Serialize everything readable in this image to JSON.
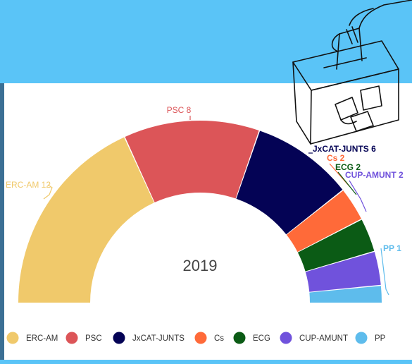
{
  "chart_data": {
    "type": "parliament-semicircle",
    "center_label": "2019",
    "legend_placement": "bottom",
    "series": [
      {
        "name": "ERC-AM",
        "seats": 12,
        "label": "ERC-AM 12",
        "color": "#f0c96b"
      },
      {
        "name": "PSC",
        "seats": 8,
        "label": "PSC 8",
        "color": "#dc5558"
      },
      {
        "name": "JxCAT-JUNTS",
        "seats": 6,
        "label": "JxCAT-JUNTS 6",
        "color": "#040355"
      },
      {
        "name": "Cs",
        "seats": 2,
        "label": "Cs 2",
        "color": "#ff6a39"
      },
      {
        "name": "ECG",
        "seats": 2,
        "label": "ECG 2",
        "color": "#0b5b15"
      },
      {
        "name": "CUP-AMUNT",
        "seats": 2,
        "label": "CUP-AMUNT 2",
        "color": "#7052dc"
      },
      {
        "name": "PP",
        "seats": 1,
        "label": "PP 1",
        "color": "#5ebcec"
      }
    ]
  }
}
